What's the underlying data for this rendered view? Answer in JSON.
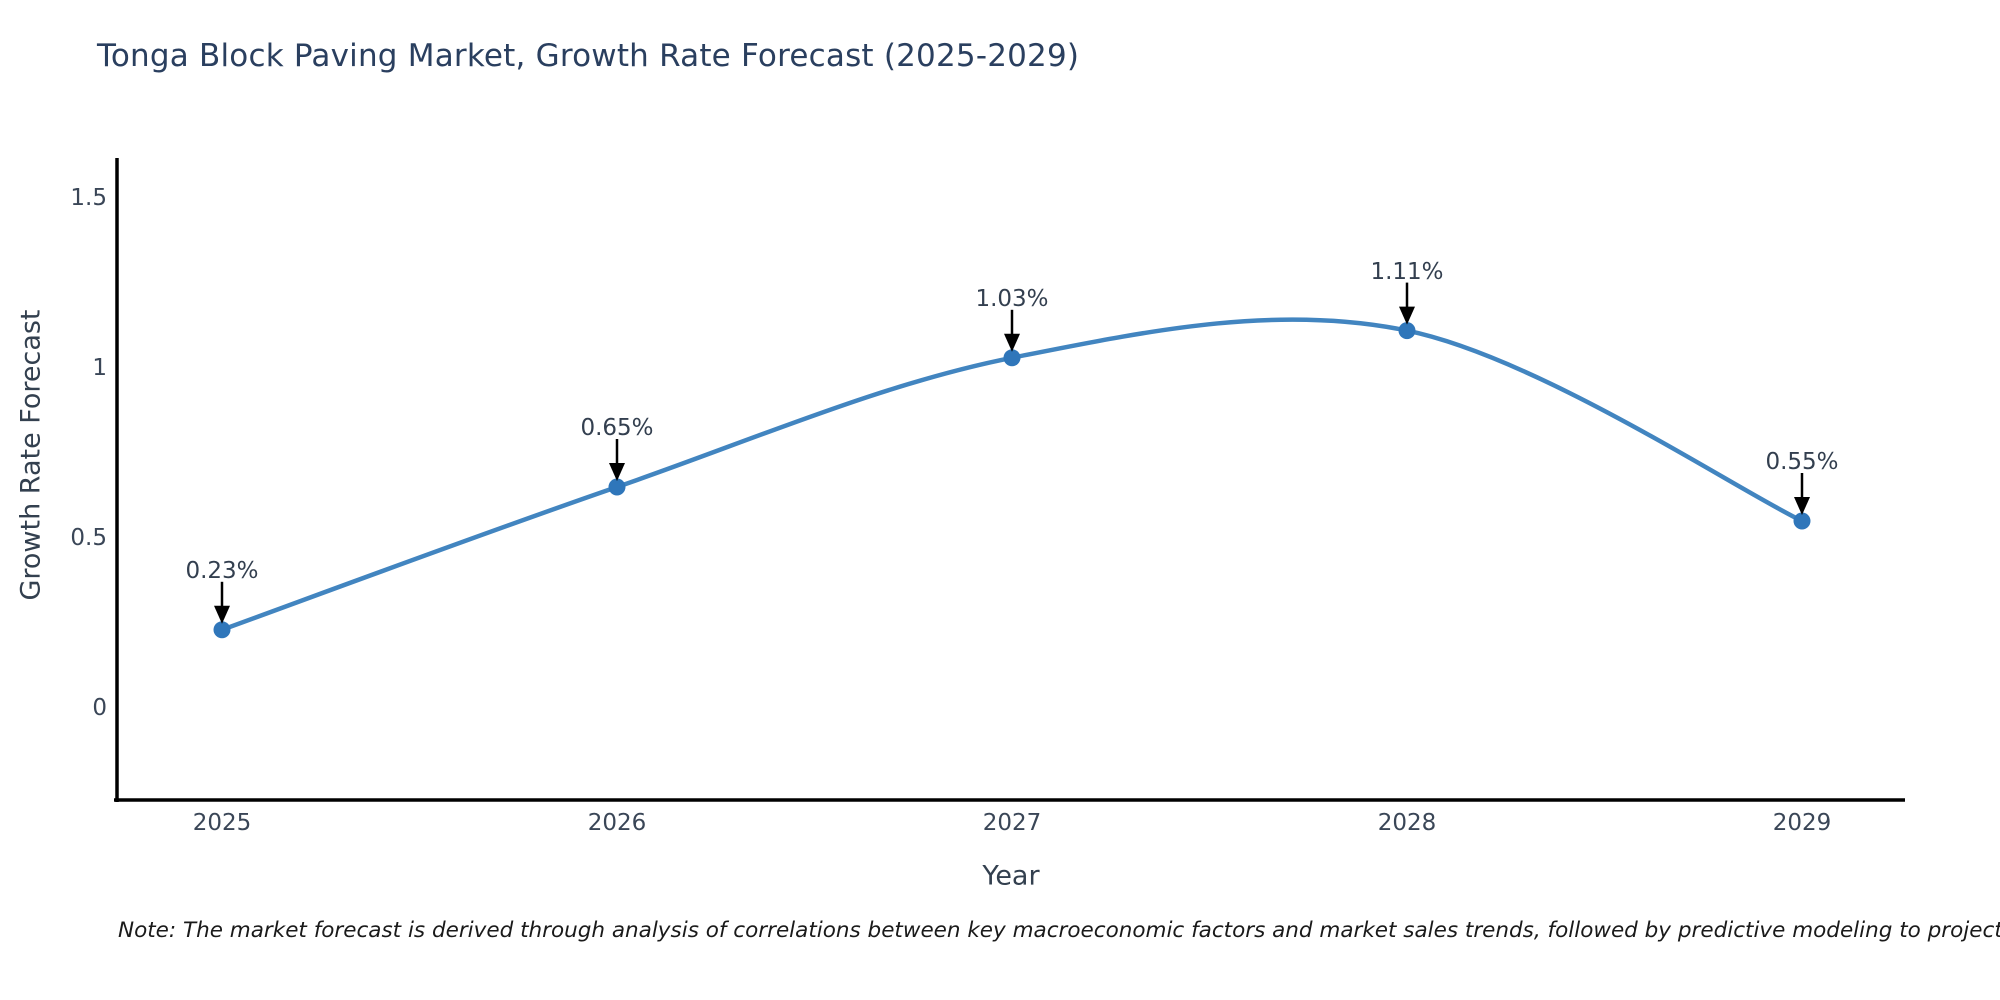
{
  "chart_data": {
    "type": "line",
    "line_shape": "spline",
    "title": "Tonga Block Paving Market, Growth Rate Forecast (2025-2029)",
    "xlabel": "Year",
    "ylabel": "Growth Rate Forecast",
    "x": [
      2025,
      2026,
      2027,
      2028,
      2029
    ],
    "x_tick_labels": [
      "2025",
      "2026",
      "2027",
      "2028",
      "2029"
    ],
    "series": [
      {
        "name": "Growth Rate Forecast",
        "values": [
          0.23,
          0.65,
          1.03,
          1.11,
          0.55
        ]
      }
    ],
    "point_labels": [
      "0.23%",
      "0.65%",
      "1.03%",
      "1.11%",
      "0.55%"
    ],
    "yticks": [
      {
        "value": 0,
        "label": "0"
      },
      {
        "value": 0.5,
        "label": "0.5"
      },
      {
        "value": 1,
        "label": "1"
      },
      {
        "value": 1.5,
        "label": "1.5"
      }
    ],
    "ylim": [
      -0.27,
      1.62
    ],
    "xlim": [
      2024.73,
      2029.26
    ],
    "grid": false,
    "legend_position": "none",
    "colors": {
      "line": "#4285c0",
      "marker": "#2f76ba",
      "annotation_arrow": "#000000",
      "axis_spine": "#000000",
      "title_text": "#2a3f5f",
      "tick_text": "#3a4657",
      "annotation_text": "#333f4f"
    }
  },
  "note": {
    "text": "Note: The market forecast is derived through analysis of correlations between key macroeconomic factors and market sales trends, followed by predictive modeling to project future sales"
  }
}
